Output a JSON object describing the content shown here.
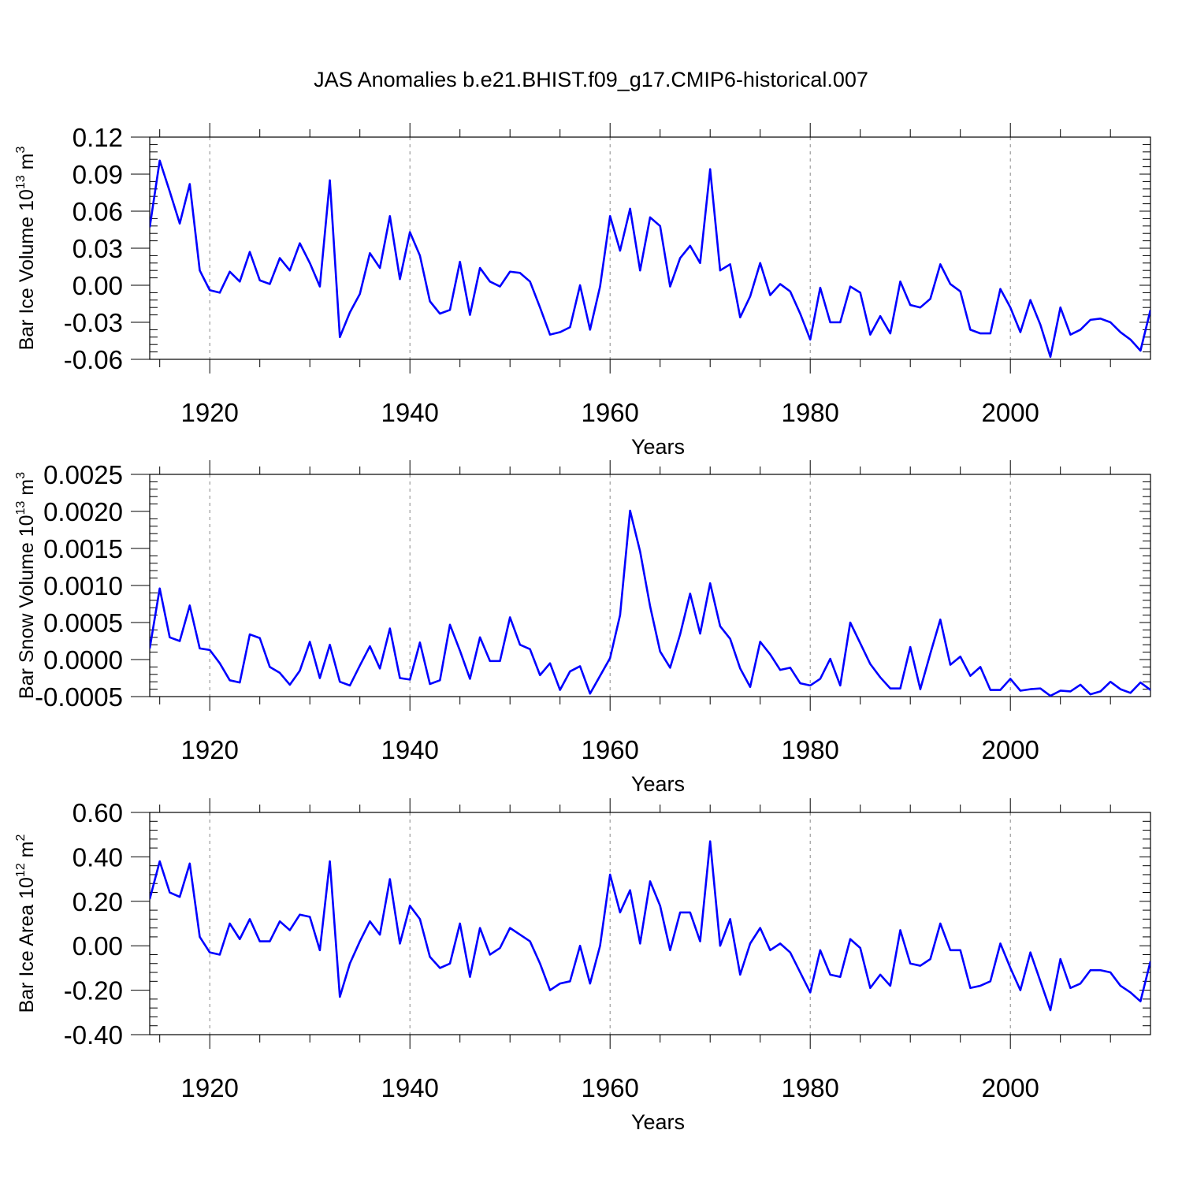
{
  "figure": {
    "title": "JAS Anomalies b.e21.BHIST.f09_g17.CMIP6-historical.007"
  },
  "colors": {
    "series": "#0000ff",
    "grid": "#888888",
    "axis": "#000000"
  },
  "chart_data": [
    {
      "type": "line",
      "name": "ice-volume",
      "title": "",
      "xlabel": "Years",
      "ylabel": {
        "main": "Bar Ice Volume 10",
        "sup": "13",
        "unit": " m",
        "unit_sup": "3"
      },
      "xlim": [
        1914,
        2014
      ],
      "ylim": [
        -0.06,
        0.12
      ],
      "xticks": [
        1920,
        1940,
        1960,
        1980,
        2000
      ],
      "xtick_labels": [
        "1920",
        "1940",
        "1960",
        "1980",
        "2000"
      ],
      "yticks": [
        -0.06,
        -0.03,
        0.0,
        0.03,
        0.06,
        0.09,
        0.12
      ],
      "ytick_labels": [
        "-0.06",
        "-0.03",
        "0.00",
        "0.03",
        "0.06",
        "0.09",
        "0.12"
      ],
      "grid": "vertical dashed at major x ticks",
      "series": [
        {
          "name": "JAS anomaly",
          "x_start": 1914,
          "x_step": 1,
          "values": [
            0.047,
            0.101,
            0.076,
            0.05,
            0.082,
            0.012,
            -0.004,
            -0.006,
            0.011,
            0.003,
            0.027,
            0.004,
            0.001,
            0.022,
            0.012,
            0.034,
            0.018,
            -0.001,
            0.085,
            -0.042,
            -0.022,
            -0.007,
            0.026,
            0.014,
            0.056,
            0.005,
            0.043,
            0.024,
            -0.013,
            -0.023,
            -0.02,
            0.019,
            -0.024,
            0.014,
            0.003,
            -0.001,
            0.011,
            0.01,
            0.003,
            -0.018,
            -0.04,
            -0.038,
            -0.034,
            0.0,
            -0.036,
            -0.001,
            0.056,
            0.028,
            0.062,
            0.012,
            0.055,
            0.048,
            -0.001,
            0.022,
            0.032,
            0.018,
            0.094,
            0.012,
            0.017,
            -0.026,
            -0.009,
            0.018,
            -0.008,
            0.001,
            -0.005,
            -0.023,
            -0.044,
            -0.002,
            -0.03,
            -0.03,
            -0.001,
            -0.006,
            -0.04,
            -0.025,
            -0.039,
            0.003,
            -0.016,
            -0.018,
            -0.011,
            0.017,
            0.001,
            -0.005,
            -0.036,
            -0.039,
            -0.039,
            -0.003,
            -0.018,
            -0.038,
            -0.012,
            -0.032,
            -0.058,
            -0.018,
            -0.04,
            -0.036,
            -0.028,
            -0.027,
            -0.03,
            -0.038,
            -0.044,
            -0.053,
            -0.02
          ]
        }
      ]
    },
    {
      "type": "line",
      "name": "snow-volume",
      "title": "",
      "xlabel": "Years",
      "ylabel": {
        "main": "Bar Snow Volume 10",
        "sup": "13",
        "unit": " m",
        "unit_sup": "3"
      },
      "xlim": [
        1914,
        2014
      ],
      "ylim": [
        -0.0005,
        0.0025
      ],
      "xticks": [
        1920,
        1940,
        1960,
        1980,
        2000
      ],
      "xtick_labels": [
        "1920",
        "1940",
        "1960",
        "1980",
        "2000"
      ],
      "yticks": [
        -0.0005,
        0.0,
        0.0005,
        0.001,
        0.0015,
        0.002,
        0.0025
      ],
      "ytick_labels": [
        "-0.0005",
        "0.0000",
        "0.0005",
        "0.0010",
        "0.0015",
        "0.0020",
        "0.0025"
      ],
      "grid": "vertical dashed at major x ticks",
      "series": [
        {
          "name": "JAS anomaly",
          "x_start": 1914,
          "x_step": 1,
          "values": [
            0.00015,
            0.00096,
            0.0003,
            0.00025,
            0.00073,
            0.00015,
            0.00013,
            -5e-05,
            -0.00028,
            -0.00031,
            0.00034,
            0.00029,
            -0.0001,
            -0.00018,
            -0.00034,
            -0.00015,
            0.00024,
            -0.00025,
            0.0002,
            -0.0003,
            -0.00035,
            -8e-05,
            0.00018,
            -0.00012,
            0.00042,
            -0.00025,
            -0.00027,
            0.00023,
            -0.00033,
            -0.00028,
            0.00047,
            0.00012,
            -0.00026,
            0.0003,
            -2e-05,
            -2e-05,
            0.00057,
            0.0002,
            0.00014,
            -0.00021,
            -5e-05,
            -0.00041,
            -0.00016,
            -9e-05,
            -0.00046,
            -0.00022,
            2e-05,
            0.0006,
            0.00201,
            0.00146,
            0.00072,
            0.00011,
            -0.00011,
            0.00034,
            0.00089,
            0.00035,
            0.00103,
            0.00045,
            0.00028,
            -0.00012,
            -0.00037,
            0.00024,
            7e-05,
            -0.00014,
            -0.00011,
            -0.00032,
            -0.00035,
            -0.00026,
            1e-05,
            -0.00035,
            0.0005,
            0.00022,
            -6e-05,
            -0.00024,
            -0.00039,
            -0.00039,
            0.00017,
            -0.0004,
            8e-05,
            0.00054,
            -7e-05,
            4e-05,
            -0.00022,
            -0.0001,
            -0.00041,
            -0.00041,
            -0.00026,
            -0.00042,
            -0.0004,
            -0.00039,
            -0.00049,
            -0.00042,
            -0.00043,
            -0.00034,
            -0.00047,
            -0.00043,
            -0.0003,
            -0.0004,
            -0.00045,
            -0.00031,
            -0.00041
          ]
        }
      ]
    },
    {
      "type": "line",
      "name": "ice-area",
      "title": "",
      "xlabel": "Years",
      "ylabel": {
        "main": "Bar Ice Area 10",
        "sup": "12",
        "unit": " m",
        "unit_sup": "2"
      },
      "xlim": [
        1914,
        2014
      ],
      "ylim": [
        -0.4,
        0.6
      ],
      "xticks": [
        1920,
        1940,
        1960,
        1980,
        2000
      ],
      "xtick_labels": [
        "1920",
        "1940",
        "1960",
        "1980",
        "2000"
      ],
      "yticks": [
        -0.4,
        -0.2,
        0.0,
        0.2,
        0.4,
        0.6
      ],
      "ytick_labels": [
        "-0.40",
        "-0.20",
        "0.00",
        "0.20",
        "0.40",
        "0.60"
      ],
      "grid": "vertical dashed at major x ticks",
      "series": [
        {
          "name": "JAS anomaly",
          "x_start": 1914,
          "x_step": 1,
          "values": [
            0.21,
            0.38,
            0.24,
            0.22,
            0.37,
            0.04,
            -0.03,
            -0.04,
            0.1,
            0.03,
            0.12,
            0.02,
            0.02,
            0.11,
            0.07,
            0.14,
            0.13,
            -0.02,
            0.38,
            -0.23,
            -0.08,
            0.02,
            0.11,
            0.05,
            0.3,
            0.01,
            0.18,
            0.12,
            -0.05,
            -0.1,
            -0.08,
            0.1,
            -0.14,
            0.08,
            -0.04,
            -0.01,
            0.08,
            0.05,
            0.02,
            -0.08,
            -0.2,
            -0.17,
            -0.16,
            0.0,
            -0.17,
            0.0,
            0.32,
            0.15,
            0.25,
            0.01,
            0.29,
            0.18,
            -0.02,
            0.15,
            0.15,
            0.02,
            0.47,
            0.0,
            0.12,
            -0.13,
            0.01,
            0.08,
            -0.02,
            0.01,
            -0.03,
            -0.12,
            -0.21,
            -0.02,
            -0.13,
            -0.14,
            0.03,
            -0.01,
            -0.19,
            -0.13,
            -0.18,
            0.07,
            -0.08,
            -0.09,
            -0.06,
            0.1,
            -0.02,
            -0.02,
            -0.19,
            -0.18,
            -0.16,
            0.01,
            -0.1,
            -0.2,
            -0.03,
            -0.16,
            -0.29,
            -0.06,
            -0.19,
            -0.17,
            -0.11,
            -0.11,
            -0.12,
            -0.18,
            -0.21,
            -0.25,
            -0.07
          ]
        }
      ]
    }
  ]
}
